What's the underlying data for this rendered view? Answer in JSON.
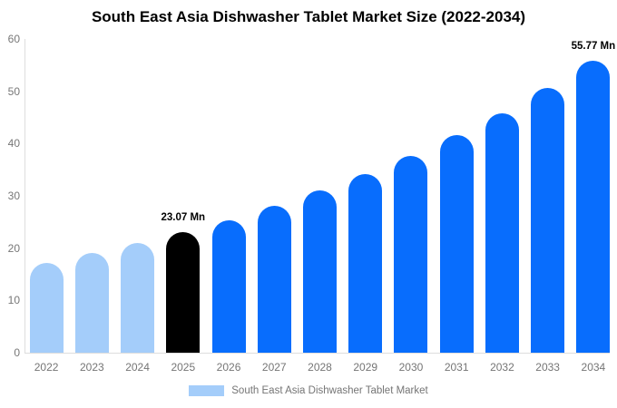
{
  "title": "South East Asia Dishwasher Tablet Market Size (2022-2034)",
  "legend": {
    "label": "South East Asia Dishwasher Tablet Market",
    "swatch_color": "#a4cdfa"
  },
  "colors": {
    "light_blue": "#a4cdfa",
    "blue": "#086dfd",
    "black": "#000000",
    "axis_line": "#dddddd",
    "tick_text": "#777777",
    "value_label_text": "#000000"
  },
  "chart_data": {
    "type": "bar",
    "title": "South East Asia Dishwasher Tablet Market Size (2022-2034)",
    "categories": [
      "2022",
      "2023",
      "2024",
      "2025",
      "2026",
      "2027",
      "2028",
      "2029",
      "2030",
      "2031",
      "2032",
      "2033",
      "2034"
    ],
    "values": [
      17.2,
      19.0,
      20.9,
      23.07,
      25.4,
      28.1,
      31.0,
      34.2,
      37.7,
      41.6,
      45.8,
      50.6,
      55.77
    ],
    "unit": "Mn",
    "bar_colors": [
      "#a4cdfa",
      "#a4cdfa",
      "#a4cdfa",
      "#000000",
      "#086dfd",
      "#086dfd",
      "#086dfd",
      "#086dfd",
      "#086dfd",
      "#086dfd",
      "#086dfd",
      "#086dfd",
      "#086dfd"
    ],
    "annotations": [
      {
        "category": "2025",
        "index": 3,
        "text": "23.07 Mn"
      },
      {
        "category": "2034",
        "index": 12,
        "text": "55.77 Mn"
      }
    ],
    "xlabel": "",
    "ylabel": "",
    "ylim": [
      0,
      60
    ],
    "yticks": [
      0,
      10,
      20,
      30,
      40,
      50,
      60
    ],
    "grid": false,
    "legend_entries": [
      "South East Asia Dishwasher Tablet Market"
    ],
    "legend_position": "bottom",
    "bar_shape": "rounded-top"
  }
}
